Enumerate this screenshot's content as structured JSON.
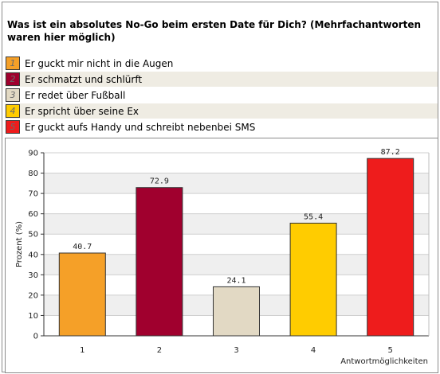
{
  "question": "Was ist ein absolutes No-Go beim ersten Date für Dich? (Mehrfachantworten waren hier möglich)",
  "legend": [
    {
      "number": "1",
      "label": "Er guckt mir nicht in die Augen",
      "color": "#f5a028"
    },
    {
      "number": "2",
      "label": "Er schmatzt und schlürft",
      "color": "#a0002e"
    },
    {
      "number": "3",
      "label": "Er redet über Fußball",
      "color": "#e2d9c4"
    },
    {
      "number": "4",
      "label": "Er spricht über seine Ex",
      "color": "#ffcc00"
    },
    {
      "number": "5",
      "label": "Er guckt aufs Handy und schreibt nebenbei SMS",
      "color": "#ee1c1c"
    }
  ],
  "chart_data": {
    "type": "bar",
    "categories": [
      "1",
      "2",
      "3",
      "4",
      "5"
    ],
    "values": [
      40.7,
      72.9,
      24.1,
      55.4,
      87.2
    ],
    "value_labels": [
      "40.7",
      "72.9",
      "24.1",
      "55.4",
      "87.2"
    ],
    "colors": [
      "#f5a028",
      "#a0002e",
      "#e2d9c4",
      "#ffcc00",
      "#ee1c1c"
    ],
    "ylabel": "Prozent (%)",
    "xlabel": "Antwortmöglichkeiten",
    "ylim": [
      0,
      90
    ],
    "yticks": [
      "0",
      "10",
      "20",
      "30",
      "40",
      "50",
      "60",
      "70",
      "80",
      "90"
    ],
    "grid": true
  }
}
